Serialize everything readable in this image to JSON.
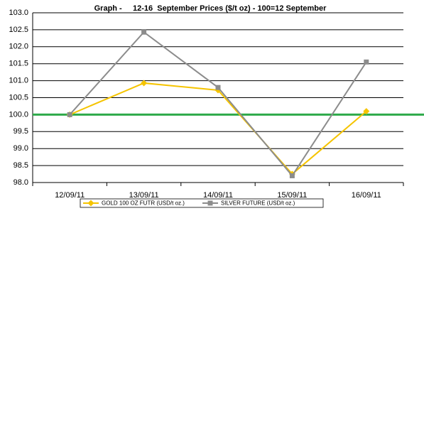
{
  "chart_data": {
    "type": "line",
    "title": "Graph -     12-16  September Prices ($/t oz) - 100=12 September",
    "categories": [
      "12/09/11",
      "13/09/11",
      "14/09/11",
      "15/09/11",
      "16/09/11"
    ],
    "series": [
      {
        "name": "GOLD 100 OZ FUTR (USD/t oz.)",
        "color": "#f5c400",
        "marker": "diamond",
        "values": [
          100.0,
          100.93,
          100.72,
          98.25,
          100.1
        ]
      },
      {
        "name": "SILVER FUTURE (USD/t oz.)",
        "color": "#8c8c8c",
        "marker": "square",
        "values": [
          100.0,
          102.43,
          100.8,
          98.2,
          101.55
        ]
      }
    ],
    "ylim": [
      98,
      103
    ],
    "yticks": [
      {
        "value": 98,
        "label": "98.0"
      },
      {
        "value": 98.5,
        "label": "98.5"
      },
      {
        "value": 99,
        "label": "99.0"
      },
      {
        "value": 99.5,
        "label": "99.5"
      },
      {
        "value": 100,
        "label": "100.0"
      },
      {
        "value": 100.5,
        "label": "100.5"
      },
      {
        "value": 101,
        "label": "101.0"
      },
      {
        "value": 101.5,
        "label": "101.5"
      },
      {
        "value": 102,
        "label": "102.0"
      },
      {
        "value": 102.5,
        "label": "102.5"
      },
      {
        "value": 103,
        "label": "103.0"
      }
    ],
    "grid": true,
    "reference_line": {
      "value": 100,
      "color": "#2eaa4a"
    },
    "legend": "bottom"
  }
}
